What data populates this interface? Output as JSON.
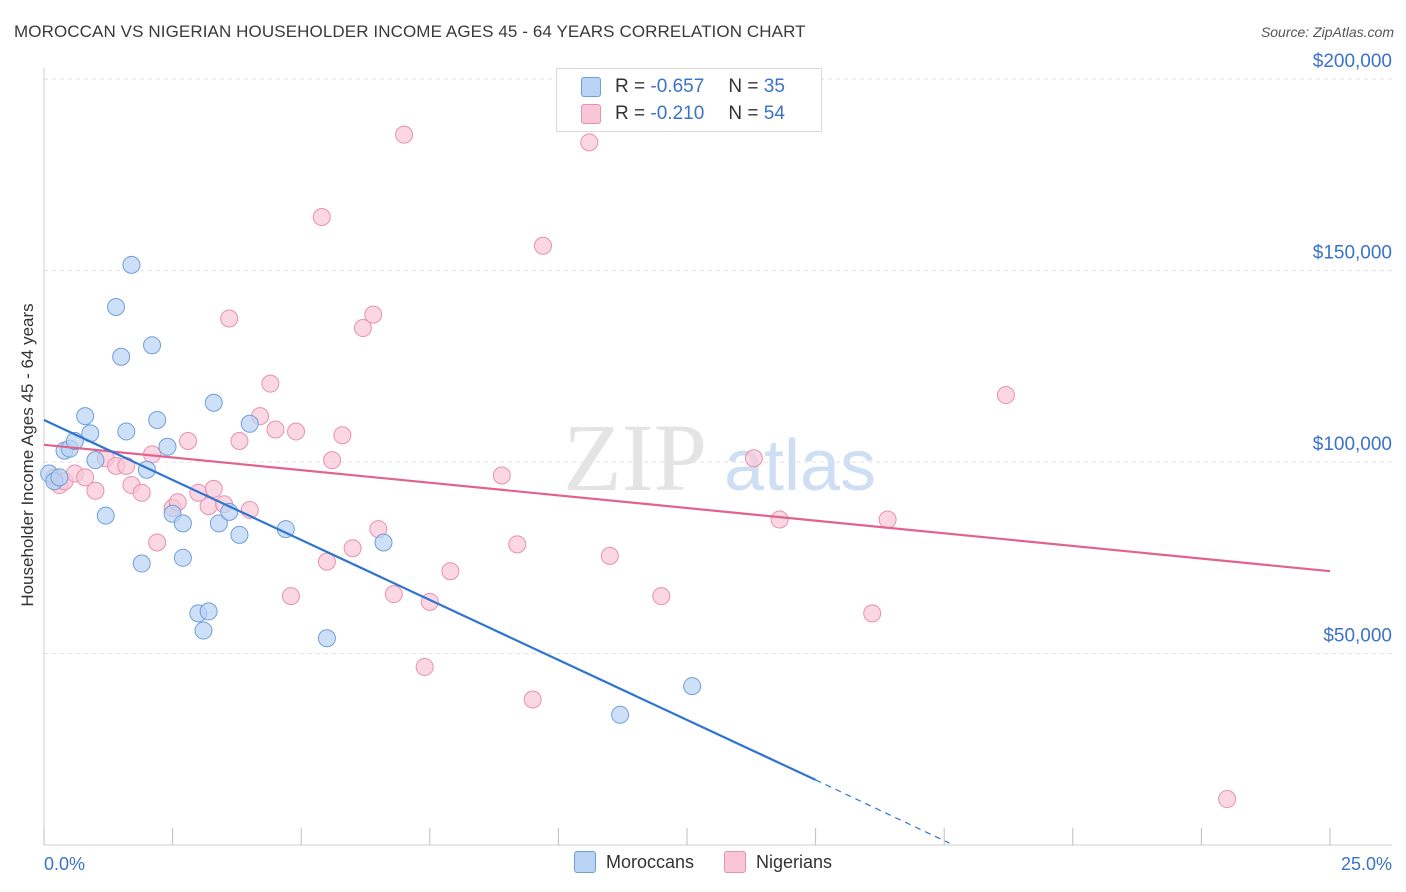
{
  "title": "MOROCCAN VS NIGERIAN HOUSEHOLDER INCOME AGES 45 - 64 YEARS CORRELATION CHART",
  "source": "Source: ZipAtlas.com",
  "watermark": {
    "zip": "ZIP",
    "atlas": "atlas"
  },
  "legend": {
    "r_label": "R =",
    "n_label": "N =",
    "moroccans": {
      "r": "-0.657",
      "n": "35"
    },
    "nigerians": {
      "r": "-0.210",
      "n": "54"
    }
  },
  "colors": {
    "moroccans_fill": "#b9d3f5",
    "moroccans_stroke": "#6f9fd8",
    "moroccans_line": "#2f74d0",
    "nigerians_fill": "#f8c6d6",
    "nigerians_stroke": "#e891ae",
    "nigerians_line": "#e0638f",
    "tick_label": "#3b73c9"
  },
  "chart_data": {
    "type": "scatter",
    "title": "MOROCCAN VS NIGERIAN HOUSEHOLDER INCOME AGES 45 - 64 YEARS CORRELATION CHART",
    "xlabel": "",
    "ylabel": "Householder Income Ages 45 - 64 years",
    "xlim": [
      0,
      25
    ],
    "ylim": [
      0,
      205000
    ],
    "x_tick_labels": [
      "0.0%",
      "25.0%"
    ],
    "y_ticks": [
      50000,
      100000,
      150000,
      200000
    ],
    "y_tick_labels": [
      "$50,000",
      "$100,000",
      "$150,000",
      "$200,000"
    ],
    "grid": true,
    "legend_position": "bottom",
    "series": [
      {
        "name": "Moroccans",
        "points": [
          [
            0.1,
            97000
          ],
          [
            0.2,
            95000
          ],
          [
            0.3,
            96000
          ],
          [
            0.4,
            103000
          ],
          [
            0.5,
            103500
          ],
          [
            0.6,
            105500
          ],
          [
            0.8,
            112000
          ],
          [
            0.9,
            107500
          ],
          [
            1.0,
            100500
          ],
          [
            1.2,
            86000
          ],
          [
            1.4,
            140500
          ],
          [
            1.5,
            127500
          ],
          [
            1.6,
            108000
          ],
          [
            1.7,
            151500
          ],
          [
            1.9,
            73500
          ],
          [
            2.0,
            98000
          ],
          [
            2.1,
            130500
          ],
          [
            2.2,
            111000
          ],
          [
            2.4,
            104000
          ],
          [
            2.5,
            86500
          ],
          [
            2.7,
            84000
          ],
          [
            2.7,
            75000
          ],
          [
            3.0,
            60500
          ],
          [
            3.1,
            56000
          ],
          [
            3.2,
            61000
          ],
          [
            3.3,
            115500
          ],
          [
            3.4,
            84000
          ],
          [
            3.6,
            87000
          ],
          [
            3.8,
            81000
          ],
          [
            4.0,
            110000
          ],
          [
            4.7,
            82500
          ],
          [
            5.5,
            54000
          ],
          [
            6.6,
            79000
          ],
          [
            11.2,
            34000
          ],
          [
            12.6,
            41500
          ]
        ],
        "trend": {
          "x": [
            0,
            15
          ],
          "y": [
            111000,
            17000
          ]
        },
        "trend_extension": {
          "x": [
            15,
            17.6
          ],
          "y": [
            17000,
            500
          ]
        }
      },
      {
        "name": "Nigerians",
        "points": [
          [
            0.2,
            96000
          ],
          [
            0.3,
            94000
          ],
          [
            0.4,
            95000
          ],
          [
            0.6,
            97000
          ],
          [
            0.8,
            96000
          ],
          [
            1.0,
            92500
          ],
          [
            1.2,
            101000
          ],
          [
            1.4,
            99000
          ],
          [
            1.6,
            99000
          ],
          [
            1.7,
            94000
          ],
          [
            1.9,
            92000
          ],
          [
            2.1,
            102000
          ],
          [
            2.2,
            79000
          ],
          [
            2.5,
            88000
          ],
          [
            2.6,
            89500
          ],
          [
            2.8,
            105500
          ],
          [
            3.0,
            92000
          ],
          [
            3.2,
            88500
          ],
          [
            3.3,
            93000
          ],
          [
            3.5,
            89000
          ],
          [
            3.6,
            137500
          ],
          [
            3.8,
            105500
          ],
          [
            4.0,
            87500
          ],
          [
            4.2,
            112000
          ],
          [
            4.4,
            120500
          ],
          [
            4.5,
            108500
          ],
          [
            4.8,
            65000
          ],
          [
            4.9,
            108000
          ],
          [
            5.4,
            164000
          ],
          [
            5.5,
            74000
          ],
          [
            5.6,
            100500
          ],
          [
            5.8,
            107000
          ],
          [
            6.0,
            77500
          ],
          [
            6.2,
            135000
          ],
          [
            6.4,
            138500
          ],
          [
            6.5,
            82500
          ],
          [
            6.8,
            65500
          ],
          [
            7.0,
            185500
          ],
          [
            7.4,
            46500
          ],
          [
            7.5,
            63500
          ],
          [
            7.9,
            71500
          ],
          [
            8.9,
            96500
          ],
          [
            9.2,
            78500
          ],
          [
            9.5,
            38000
          ],
          [
            9.7,
            156500
          ],
          [
            10.6,
            183500
          ],
          [
            11.0,
            75500
          ],
          [
            12.0,
            65000
          ],
          [
            13.8,
            101000
          ],
          [
            14.3,
            85000
          ],
          [
            16.1,
            60500
          ],
          [
            16.4,
            85000
          ],
          [
            18.7,
            117500
          ],
          [
            23.0,
            12000
          ]
        ],
        "trend": {
          "x": [
            0,
            25
          ],
          "y": [
            104500,
            71500
          ]
        }
      }
    ]
  }
}
